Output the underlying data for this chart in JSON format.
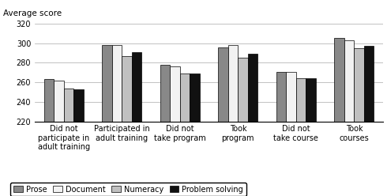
{
  "categories": [
    "Did not\nparticipate in\nadult training",
    "Participated in\nadult training",
    "Did not\ntake program",
    "Took\nprogram",
    "Did not\ntake course",
    "Took\ncourses"
  ],
  "series": {
    "Prose": [
      263,
      298,
      278,
      296,
      271,
      305
    ],
    "Document": [
      262,
      298,
      276,
      298,
      271,
      303
    ],
    "Numeracy": [
      254,
      287,
      269,
      285,
      264,
      295
    ],
    "Problem solving": [
      253,
      291,
      269,
      289,
      264,
      297
    ]
  },
  "colors": {
    "Prose": "#888888",
    "Document": "#f2f2f2",
    "Numeracy": "#c0c0c0",
    "Problem solving": "#111111"
  },
  "top_label": "Average score",
  "ylim": [
    220,
    320
  ],
  "yticks": [
    220,
    240,
    260,
    280,
    300,
    320
  ],
  "bar_width": 0.17,
  "legend_labels": [
    "Prose",
    "Document",
    "Numeracy",
    "Problem solving"
  ],
  "tick_fontsize": 7,
  "label_fontsize": 7.5
}
